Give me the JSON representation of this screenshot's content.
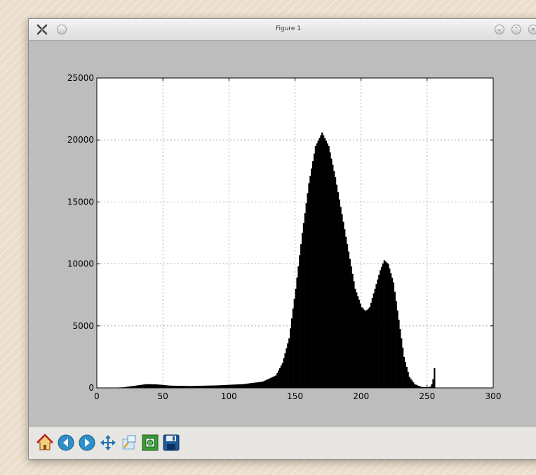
{
  "window": {
    "title": "Figure 1"
  },
  "icons": {
    "app": "matplotlib-x-icon",
    "window_controls": [
      "minimize-icon",
      "maximize-icon",
      "close-icon"
    ],
    "toolbar": [
      "home-icon",
      "back-icon",
      "forward-icon",
      "pan-icon",
      "zoom-icon",
      "configure-subplots-icon",
      "save-icon"
    ]
  },
  "chart_data": {
    "type": "bar",
    "title": "",
    "xlabel": "",
    "ylabel": "",
    "xlim": [
      0,
      300
    ],
    "ylim": [
      0,
      25000
    ],
    "xticks": [
      0,
      50,
      100,
      150,
      200,
      250,
      300
    ],
    "yticks": [
      0,
      5000,
      10000,
      15000,
      20000,
      25000
    ],
    "xtick_labels": [
      "0",
      "50",
      "100",
      "150",
      "200",
      "250",
      "300"
    ],
    "ytick_labels": [
      "0",
      "5000",
      "10000",
      "15000",
      "20000",
      "25000"
    ],
    "grid": true,
    "bar_color": "#000000",
    "histogram": {
      "bins": 256,
      "bin_start": 0,
      "bin_width": 1,
      "profile_points": [
        [
          0,
          0
        ],
        [
          10,
          0
        ],
        [
          20,
          50
        ],
        [
          30,
          200
        ],
        [
          37,
          300
        ],
        [
          45,
          280
        ],
        [
          55,
          180
        ],
        [
          70,
          150
        ],
        [
          90,
          200
        ],
        [
          110,
          300
        ],
        [
          125,
          500
        ],
        [
          135,
          1000
        ],
        [
          140,
          2000
        ],
        [
          145,
          4000
        ],
        [
          150,
          8000
        ],
        [
          155,
          12500
        ],
        [
          160,
          16500
        ],
        [
          165,
          19500
        ],
        [
          170,
          20600
        ],
        [
          175,
          19500
        ],
        [
          180,
          17000
        ],
        [
          185,
          14000
        ],
        [
          190,
          11000
        ],
        [
          195,
          8000
        ],
        [
          200,
          6500
        ],
        [
          203,
          6200
        ],
        [
          206,
          6500
        ],
        [
          210,
          8000
        ],
        [
          214,
          9500
        ],
        [
          217,
          10300
        ],
        [
          220,
          10000
        ],
        [
          224,
          8500
        ],
        [
          228,
          5500
        ],
        [
          232,
          2500
        ],
        [
          236,
          900
        ],
        [
          240,
          300
        ],
        [
          245,
          80
        ],
        [
          250,
          50
        ],
        [
          252,
          100
        ],
        [
          253,
          300
        ],
        [
          254,
          700
        ],
        [
          255,
          1600
        ]
      ]
    }
  }
}
